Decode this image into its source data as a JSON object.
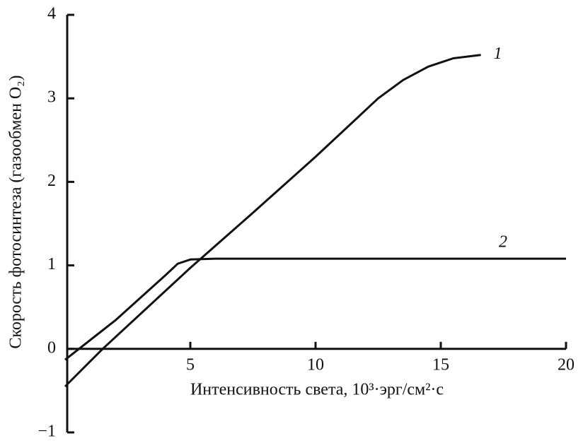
{
  "chart_data": {
    "type": "line",
    "xlabel": "Интенсивность света, 10³·эрг/см²·с",
    "ylabel": "Скорость фотосинтеза (газообмен O₂)",
    "xlim": [
      0,
      20
    ],
    "ylim": [
      -1,
      4
    ],
    "xticks": [
      5,
      10,
      15,
      20
    ],
    "yticks": [
      {
        "value": -1,
        "label": "−1"
      },
      0,
      1,
      2,
      3,
      4
    ],
    "color": "#111111",
    "series": [
      {
        "name": "1",
        "color": "#111111",
        "x": [
          0,
          1.5,
          5,
          7.5,
          10,
          12.5,
          13.5,
          14.5,
          15.5,
          16.6
        ],
        "values": [
          -0.45,
          0,
          0.97,
          1.63,
          2.3,
          3.0,
          3.22,
          3.38,
          3.48,
          3.52
        ]
      },
      {
        "name": "2",
        "color": "#111111",
        "x": [
          0,
          2,
          4,
          4.5,
          5,
          6,
          10,
          15,
          20
        ],
        "values": [
          -0.13,
          0.34,
          0.88,
          1.02,
          1.07,
          1.08,
          1.08,
          1.08,
          1.08
        ]
      }
    ]
  }
}
